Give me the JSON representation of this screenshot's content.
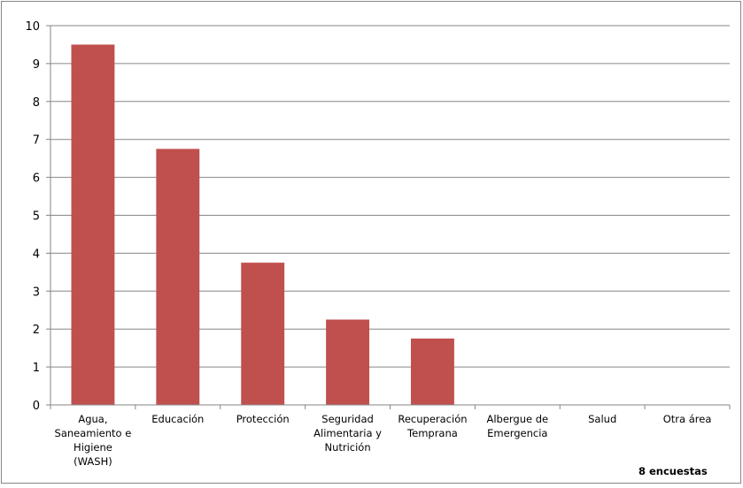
{
  "chart_data": {
    "type": "bar",
    "categories": [
      [
        "Agua,",
        "Saneamiento e",
        "Higiene",
        "(WASH)"
      ],
      [
        "Educación"
      ],
      [
        "Protección"
      ],
      [
        "Seguridad",
        "Alimentaria y",
        "Nutrición"
      ],
      [
        "Recuperación",
        "Temprana"
      ],
      [
        "Albergue de",
        "Emergencia"
      ],
      [
        "Salud"
      ],
      [
        "Otra área"
      ]
    ],
    "series": [
      {
        "values": [
          9.5,
          6.75,
          3.75,
          2.25,
          1.75,
          0,
          0,
          0
        ]
      }
    ],
    "yticks": [
      "0",
      "1",
      "2",
      "3",
      "4",
      "5",
      "6",
      "7",
      "8",
      "9",
      "10"
    ],
    "ylim": [
      0,
      10
    ],
    "grid": true,
    "legend": "none",
    "bar_color": "#c0504d",
    "gridline_color": "#868686",
    "annotation": "8 encuestas"
  }
}
